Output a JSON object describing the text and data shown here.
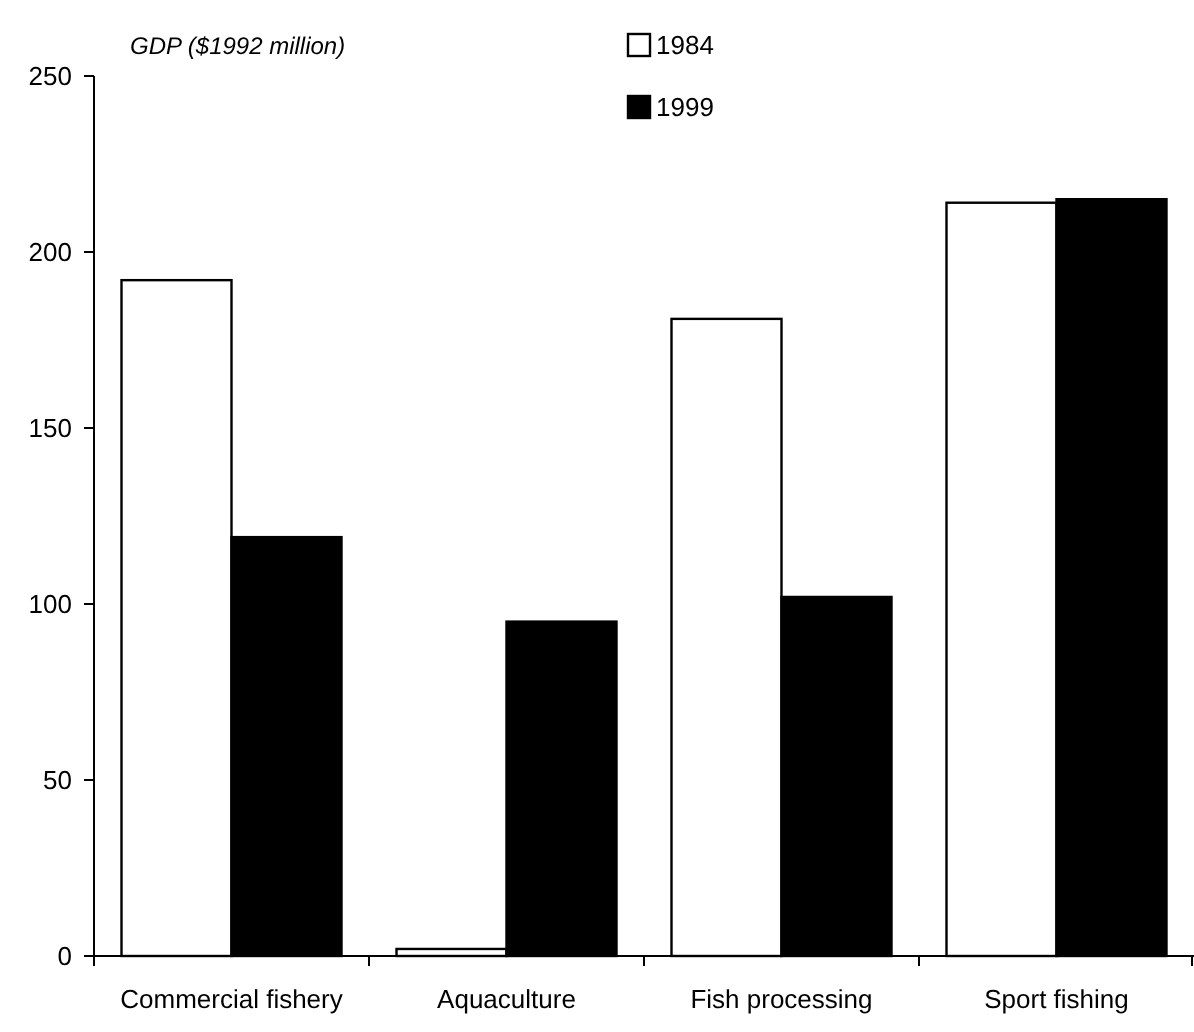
{
  "chart_data": {
    "type": "bar",
    "ylabel": "GDP ($1992 million)",
    "categories": [
      "Commercial fishery",
      "Aquaculture",
      "Fish processing",
      "Sport fishing"
    ],
    "series": [
      {
        "name": "1984",
        "color": "#ffffff",
        "values": [
          192,
          2,
          181,
          214
        ]
      },
      {
        "name": "1999",
        "color": "#000000",
        "values": [
          119,
          95,
          102,
          215
        ]
      }
    ],
    "ylim": [
      0,
      250
    ],
    "yticks": [
      0,
      50,
      100,
      150,
      200,
      250
    ],
    "legend": "top",
    "grid": false
  }
}
